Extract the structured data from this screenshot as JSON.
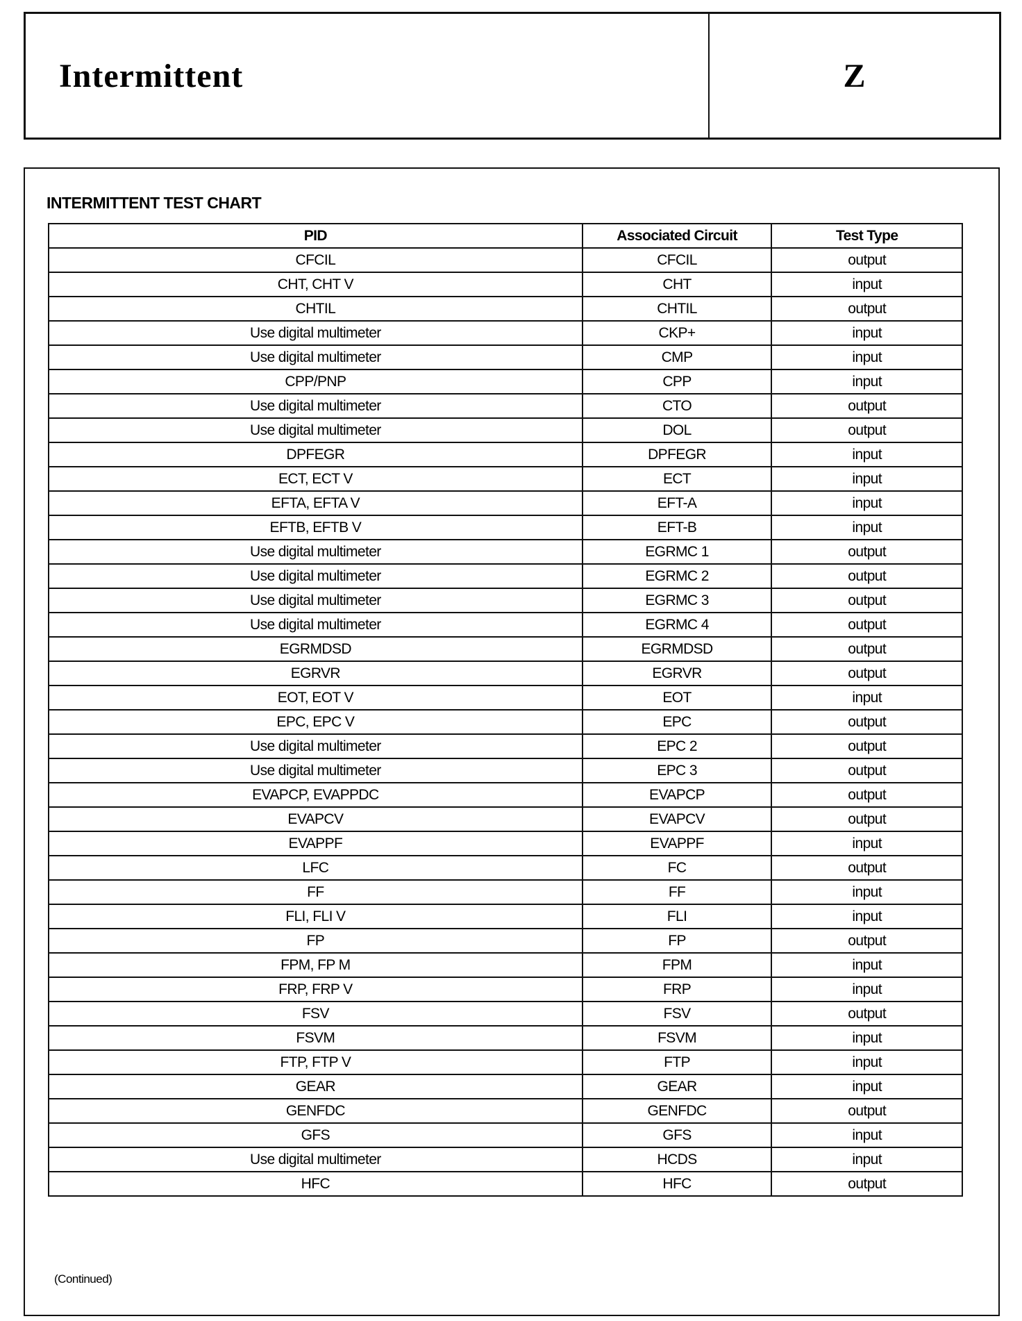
{
  "header": {
    "title": "Intermittent",
    "section_letter": "Z"
  },
  "chart": {
    "title": "INTERMITTENT TEST CHART",
    "columns": [
      "PID",
      "Associated Circuit",
      "Test Type"
    ],
    "rows": [
      [
        "CFCIL",
        "CFCIL",
        "output"
      ],
      [
        "CHT, CHT V",
        "CHT",
        "input"
      ],
      [
        "CHTIL",
        "CHTIL",
        "output"
      ],
      [
        "Use digital multimeter",
        "CKP+",
        "input"
      ],
      [
        "Use digital multimeter",
        "CMP",
        "input"
      ],
      [
        "CPP/PNP",
        "CPP",
        "input"
      ],
      [
        "Use digital multimeter",
        "CTO",
        "output"
      ],
      [
        "Use digital multimeter",
        "DOL",
        "output"
      ],
      [
        "DPFEGR",
        "DPFEGR",
        "input"
      ],
      [
        "ECT, ECT V",
        "ECT",
        "input"
      ],
      [
        "EFTA, EFTA V",
        "EFT-A",
        "input"
      ],
      [
        "EFTB, EFTB V",
        "EFT-B",
        "input"
      ],
      [
        "Use digital multimeter",
        "EGRMC 1",
        "output"
      ],
      [
        "Use digital multimeter",
        "EGRMC 2",
        "output"
      ],
      [
        "Use digital multimeter",
        "EGRMC 3",
        "output"
      ],
      [
        "Use digital multimeter",
        "EGRMC 4",
        "output"
      ],
      [
        "EGRMDSD",
        "EGRMDSD",
        "output"
      ],
      [
        "EGRVR",
        "EGRVR",
        "output"
      ],
      [
        "EOT, EOT V",
        "EOT",
        "input"
      ],
      [
        "EPC, EPC V",
        "EPC",
        "output"
      ],
      [
        "Use digital multimeter",
        "EPC 2",
        "output"
      ],
      [
        "Use digital multimeter",
        "EPC 3",
        "output"
      ],
      [
        "EVAPCP, EVAPPDC",
        "EVAPCP",
        "output"
      ],
      [
        "EVAPCV",
        "EVAPCV",
        "output"
      ],
      [
        "EVAPPF",
        "EVAPPF",
        "input"
      ],
      [
        "LFC",
        "FC",
        "output"
      ],
      [
        "FF",
        "FF",
        "input"
      ],
      [
        "FLI, FLI V",
        "FLI",
        "input"
      ],
      [
        "FP",
        "FP",
        "output"
      ],
      [
        "FPM, FP M",
        "FPM",
        "input"
      ],
      [
        "FRP, FRP V",
        "FRP",
        "input"
      ],
      [
        "FSV",
        "FSV",
        "output"
      ],
      [
        "FSVM",
        "FSVM",
        "input"
      ],
      [
        "FTP, FTP V",
        "FTP",
        "input"
      ],
      [
        "GEAR",
        "GEAR",
        "input"
      ],
      [
        "GENFDC",
        "GENFDC",
        "output"
      ],
      [
        "GFS",
        "GFS",
        "input"
      ],
      [
        "Use digital multimeter",
        "HCDS",
        "input"
      ],
      [
        "HFC",
        "HFC",
        "output"
      ]
    ],
    "footnote": "(Continued)"
  }
}
